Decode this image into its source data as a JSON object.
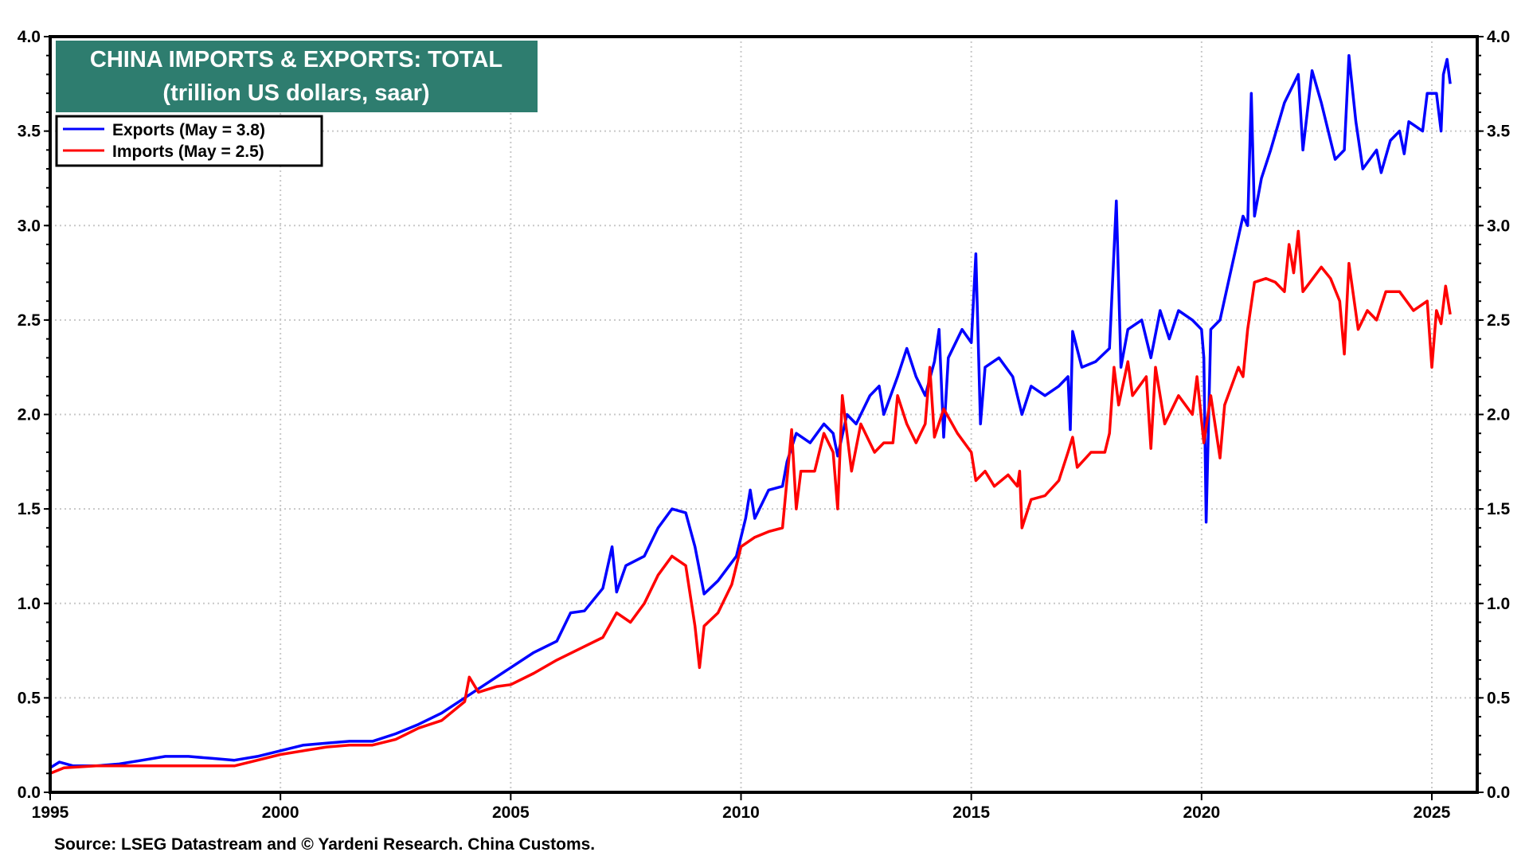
{
  "chart_data": {
    "type": "line",
    "title": "CHINA IMPORTS & EXPORTS: TOTAL",
    "subtitle": "(trillion US dollars, saar)",
    "source": "Source: LSEG Datastream and © Yardeni Research. China Customs.",
    "xlabel": "",
    "ylabel": "",
    "xlim": [
      1995,
      2026
    ],
    "ylim": [
      0,
      4
    ],
    "x_ticks": [
      "1995",
      "2000",
      "2005",
      "2010",
      "2015",
      "2020",
      "2025"
    ],
    "y_ticks": [
      "0.0",
      "0.5",
      "1.0",
      "1.5",
      "2.0",
      "2.5",
      "3.0",
      "3.5",
      "4.0"
    ],
    "grid": true,
    "legend_position": "top-left",
    "colors": {
      "title_bg": "#2e7d6f",
      "exports": "#0000ff",
      "imports": "#ff0000"
    },
    "series": [
      {
        "name": "Exports (May = 3.8)",
        "color": "#0000ff",
        "points": [
          [
            1995.0,
            0.13
          ],
          [
            1995.2,
            0.16
          ],
          [
            1995.5,
            0.14
          ],
          [
            1996,
            0.14
          ],
          [
            1996.5,
            0.15
          ],
          [
            1997,
            0.17
          ],
          [
            1997.5,
            0.19
          ],
          [
            1998,
            0.19
          ],
          [
            1998.5,
            0.18
          ],
          [
            1999,
            0.17
          ],
          [
            1999.5,
            0.19
          ],
          [
            2000,
            0.22
          ],
          [
            2000.5,
            0.25
          ],
          [
            2001,
            0.26
          ],
          [
            2001.5,
            0.27
          ],
          [
            2002,
            0.27
          ],
          [
            2002.5,
            0.31
          ],
          [
            2003,
            0.36
          ],
          [
            2003.5,
            0.42
          ],
          [
            2004,
            0.5
          ],
          [
            2004.5,
            0.58
          ],
          [
            2005,
            0.66
          ],
          [
            2005.5,
            0.74
          ],
          [
            2006,
            0.8
          ],
          [
            2006.3,
            0.95
          ],
          [
            2006.6,
            0.96
          ],
          [
            2007,
            1.08
          ],
          [
            2007.2,
            1.3
          ],
          [
            2007.3,
            1.06
          ],
          [
            2007.5,
            1.2
          ],
          [
            2007.9,
            1.25
          ],
          [
            2008.2,
            1.4
          ],
          [
            2008.5,
            1.5
          ],
          [
            2008.8,
            1.48
          ],
          [
            2009,
            1.3
          ],
          [
            2009.2,
            1.05
          ],
          [
            2009.5,
            1.12
          ],
          [
            2009.9,
            1.25
          ],
          [
            2010.1,
            1.45
          ],
          [
            2010.2,
            1.6
          ],
          [
            2010.3,
            1.45
          ],
          [
            2010.6,
            1.6
          ],
          [
            2010.9,
            1.62
          ],
          [
            2011.0,
            1.75
          ],
          [
            2011.2,
            1.9
          ],
          [
            2011.5,
            1.85
          ],
          [
            2011.8,
            1.95
          ],
          [
            2012.0,
            1.9
          ],
          [
            2012.1,
            1.78
          ],
          [
            2012.3,
            2.0
          ],
          [
            2012.5,
            1.95
          ],
          [
            2012.8,
            2.1
          ],
          [
            2013.0,
            2.15
          ],
          [
            2013.1,
            2.0
          ],
          [
            2013.4,
            2.2
          ],
          [
            2013.6,
            2.35
          ],
          [
            2013.8,
            2.2
          ],
          [
            2014.0,
            2.1
          ],
          [
            2014.2,
            2.28
          ],
          [
            2014.3,
            2.45
          ],
          [
            2014.4,
            1.88
          ],
          [
            2014.5,
            2.3
          ],
          [
            2014.8,
            2.45
          ],
          [
            2015.0,
            2.38
          ],
          [
            2015.1,
            2.85
          ],
          [
            2015.2,
            1.95
          ],
          [
            2015.3,
            2.25
          ],
          [
            2015.6,
            2.3
          ],
          [
            2015.9,
            2.2
          ],
          [
            2016.1,
            2.0
          ],
          [
            2016.3,
            2.15
          ],
          [
            2016.6,
            2.1
          ],
          [
            2016.9,
            2.15
          ],
          [
            2017.1,
            2.2
          ],
          [
            2017.15,
            1.92
          ],
          [
            2017.2,
            2.44
          ],
          [
            2017.4,
            2.25
          ],
          [
            2017.7,
            2.28
          ],
          [
            2018.0,
            2.35
          ],
          [
            2018.15,
            3.13
          ],
          [
            2018.25,
            2.25
          ],
          [
            2018.4,
            2.45
          ],
          [
            2018.7,
            2.5
          ],
          [
            2018.9,
            2.3
          ],
          [
            2019.1,
            2.55
          ],
          [
            2019.3,
            2.4
          ],
          [
            2019.5,
            2.55
          ],
          [
            2019.8,
            2.5
          ],
          [
            2020.0,
            2.45
          ],
          [
            2020.05,
            2.3
          ],
          [
            2020.1,
            1.43
          ],
          [
            2020.2,
            2.45
          ],
          [
            2020.4,
            2.5
          ],
          [
            2020.6,
            2.72
          ],
          [
            2020.9,
            3.05
          ],
          [
            2021.0,
            3.0
          ],
          [
            2021.08,
            3.7
          ],
          [
            2021.15,
            3.05
          ],
          [
            2021.3,
            3.25
          ],
          [
            2021.5,
            3.4
          ],
          [
            2021.8,
            3.65
          ],
          [
            2022.1,
            3.8
          ],
          [
            2022.2,
            3.4
          ],
          [
            2022.4,
            3.82
          ],
          [
            2022.6,
            3.65
          ],
          [
            2022.9,
            3.35
          ],
          [
            2023.1,
            3.4
          ],
          [
            2023.2,
            3.9
          ],
          [
            2023.35,
            3.55
          ],
          [
            2023.5,
            3.3
          ],
          [
            2023.8,
            3.4
          ],
          [
            2023.9,
            3.28
          ],
          [
            2024.1,
            3.45
          ],
          [
            2024.3,
            3.5
          ],
          [
            2024.4,
            3.38
          ],
          [
            2024.5,
            3.55
          ],
          [
            2024.8,
            3.5
          ],
          [
            2024.9,
            3.7
          ],
          [
            2025.1,
            3.7
          ],
          [
            2025.2,
            3.5
          ],
          [
            2025.25,
            3.8
          ],
          [
            2025.33,
            3.88
          ],
          [
            2025.4,
            3.75
          ]
        ]
      },
      {
        "name": "Imports (May = 2.5)",
        "color": "#ff0000",
        "points": [
          [
            1995.0,
            0.1
          ],
          [
            1995.3,
            0.13
          ],
          [
            1996,
            0.14
          ],
          [
            1997,
            0.14
          ],
          [
            1998,
            0.14
          ],
          [
            1999,
            0.14
          ],
          [
            1999.5,
            0.17
          ],
          [
            2000,
            0.2
          ],
          [
            2000.5,
            0.22
          ],
          [
            2001,
            0.24
          ],
          [
            2001.5,
            0.25
          ],
          [
            2002,
            0.25
          ],
          [
            2002.5,
            0.28
          ],
          [
            2003,
            0.34
          ],
          [
            2003.5,
            0.38
          ],
          [
            2004,
            0.48
          ],
          [
            2004.1,
            0.61
          ],
          [
            2004.3,
            0.53
          ],
          [
            2004.7,
            0.56
          ],
          [
            2005,
            0.57
          ],
          [
            2005.5,
            0.63
          ],
          [
            2006,
            0.7
          ],
          [
            2006.5,
            0.76
          ],
          [
            2007,
            0.82
          ],
          [
            2007.3,
            0.95
          ],
          [
            2007.6,
            0.9
          ],
          [
            2007.9,
            1.0
          ],
          [
            2008.2,
            1.15
          ],
          [
            2008.5,
            1.25
          ],
          [
            2008.8,
            1.2
          ],
          [
            2009.0,
            0.88
          ],
          [
            2009.1,
            0.66
          ],
          [
            2009.2,
            0.88
          ],
          [
            2009.5,
            0.95
          ],
          [
            2009.8,
            1.1
          ],
          [
            2010.0,
            1.3
          ],
          [
            2010.3,
            1.35
          ],
          [
            2010.6,
            1.38
          ],
          [
            2010.9,
            1.4
          ],
          [
            2011.1,
            1.92
          ],
          [
            2011.2,
            1.5
          ],
          [
            2011.3,
            1.7
          ],
          [
            2011.6,
            1.7
          ],
          [
            2011.8,
            1.9
          ],
          [
            2012.0,
            1.8
          ],
          [
            2012.1,
            1.5
          ],
          [
            2012.2,
            2.1
          ],
          [
            2012.4,
            1.7
          ],
          [
            2012.6,
            1.95
          ],
          [
            2012.9,
            1.8
          ],
          [
            2013.1,
            1.85
          ],
          [
            2013.3,
            1.85
          ],
          [
            2013.4,
            2.1
          ],
          [
            2013.6,
            1.95
          ],
          [
            2013.8,
            1.85
          ],
          [
            2014.0,
            1.95
          ],
          [
            2014.1,
            2.25
          ],
          [
            2014.2,
            1.88
          ],
          [
            2014.4,
            2.03
          ],
          [
            2014.7,
            1.9
          ],
          [
            2015.0,
            1.8
          ],
          [
            2015.1,
            1.65
          ],
          [
            2015.3,
            1.7
          ],
          [
            2015.5,
            1.62
          ],
          [
            2015.8,
            1.68
          ],
          [
            2016.0,
            1.62
          ],
          [
            2016.05,
            1.7
          ],
          [
            2016.1,
            1.4
          ],
          [
            2016.3,
            1.55
          ],
          [
            2016.6,
            1.57
          ],
          [
            2016.9,
            1.65
          ],
          [
            2017.1,
            1.8
          ],
          [
            2017.2,
            1.88
          ],
          [
            2017.3,
            1.72
          ],
          [
            2017.6,
            1.8
          ],
          [
            2017.9,
            1.8
          ],
          [
            2018.0,
            1.9
          ],
          [
            2018.1,
            2.25
          ],
          [
            2018.2,
            2.05
          ],
          [
            2018.4,
            2.28
          ],
          [
            2018.5,
            2.1
          ],
          [
            2018.8,
            2.2
          ],
          [
            2018.9,
            1.82
          ],
          [
            2019.0,
            2.25
          ],
          [
            2019.2,
            1.95
          ],
          [
            2019.5,
            2.1
          ],
          [
            2019.8,
            2.0
          ],
          [
            2019.9,
            2.2
          ],
          [
            2020.05,
            1.85
          ],
          [
            2020.2,
            2.1
          ],
          [
            2020.4,
            1.77
          ],
          [
            2020.5,
            2.05
          ],
          [
            2020.8,
            2.25
          ],
          [
            2020.9,
            2.2
          ],
          [
            2021.0,
            2.45
          ],
          [
            2021.15,
            2.7
          ],
          [
            2021.4,
            2.72
          ],
          [
            2021.6,
            2.7
          ],
          [
            2021.8,
            2.65
          ],
          [
            2021.9,
            2.9
          ],
          [
            2022.0,
            2.75
          ],
          [
            2022.1,
            2.97
          ],
          [
            2022.2,
            2.65
          ],
          [
            2022.6,
            2.78
          ],
          [
            2022.8,
            2.72
          ],
          [
            2023.0,
            2.6
          ],
          [
            2023.1,
            2.32
          ],
          [
            2023.2,
            2.8
          ],
          [
            2023.4,
            2.45
          ],
          [
            2023.6,
            2.55
          ],
          [
            2023.8,
            2.5
          ],
          [
            2024.0,
            2.65
          ],
          [
            2024.3,
            2.65
          ],
          [
            2024.6,
            2.55
          ],
          [
            2024.9,
            2.6
          ],
          [
            2025.0,
            2.25
          ],
          [
            2025.1,
            2.55
          ],
          [
            2025.2,
            2.48
          ],
          [
            2025.3,
            2.68
          ],
          [
            2025.4,
            2.53
          ]
        ]
      }
    ]
  }
}
